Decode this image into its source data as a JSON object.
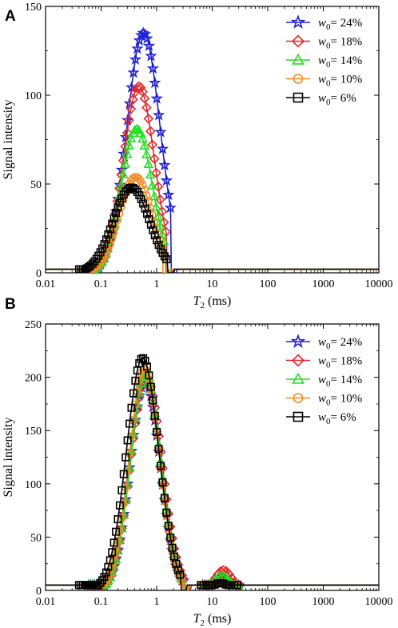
{
  "chart_data": [
    {
      "panel": "A",
      "type": "line",
      "xlabel_main": "T",
      "xlabel_sub": "2",
      "xlabel_unit": " (ms)",
      "ylabel": "Signal intensity",
      "xscale": "log",
      "xlim": [
        0.01,
        10000
      ],
      "ylim": [
        0,
        150
      ],
      "xticks": [
        "0.01",
        "0.1",
        "1",
        "10",
        "100",
        "1000",
        "10000"
      ],
      "yticks": [
        "0",
        "50",
        "100",
        "150"
      ],
      "grid": false,
      "legend_position": "top-right",
      "series": [
        {
          "legend_w": "w",
          "legend_sub": "0",
          "legend_val": "= 24%",
          "color": "#1f1fd6",
          "marker": "star",
          "peak": 135,
          "center": 0.58,
          "sigma": 0.3,
          "x_lo": 0.06,
          "x_hi": 1.8
        },
        {
          "legend_w": "w",
          "legend_sub": "0",
          "legend_val": "= 18%",
          "color": "#e8272a",
          "marker": "diamond",
          "peak": 105,
          "center": 0.48,
          "sigma": 0.28,
          "x_lo": 0.05,
          "x_hi": 1.5
        },
        {
          "legend_w": "w",
          "legend_sub": "0",
          "legend_val": "= 14%",
          "color": "#22e022",
          "marker": "triangle",
          "peak": 81,
          "center": 0.44,
          "sigma": 0.28,
          "x_lo": 0.05,
          "x_hi": 1.4
        },
        {
          "legend_w": "w",
          "legend_sub": "0",
          "legend_val": "= 10%",
          "color": "#f58a1f",
          "marker": "circle",
          "peak": 54,
          "center": 0.42,
          "sigma": 0.3,
          "x_lo": 0.05,
          "x_hi": 1.3
        },
        {
          "legend_w": "w",
          "legend_sub": "0",
          "legend_val": "= 6%",
          "color": "#000000",
          "marker": "square",
          "peak": 48,
          "center": 0.35,
          "sigma": 0.33,
          "x_lo": 0.04,
          "x_hi": 1.6
        }
      ],
      "baseline": 2
    },
    {
      "panel": "B",
      "type": "line",
      "xlabel_main": "T",
      "xlabel_sub": "2",
      "xlabel_unit": " (ms)",
      "ylabel": "Signal intensity",
      "xscale": "log",
      "xlim": [
        0.01,
        10000
      ],
      "ylim": [
        0,
        250
      ],
      "xticks": [
        "0.01",
        "0.1",
        "1",
        "10",
        "100",
        "1000",
        "10000"
      ],
      "yticks": [
        "0",
        "50",
        "100",
        "150",
        "200",
        "250"
      ],
      "grid": false,
      "legend_position": "top-right",
      "series": [
        {
          "legend_w": "w",
          "legend_sub": "0",
          "legend_val": "= 24%",
          "color": "#1f1fd6",
          "marker": "star",
          "peak": 197,
          "center": 0.62,
          "sigma": 0.27,
          "x_lo": 0.06,
          "x_hi": 3.0,
          "peak2": 12,
          "center2": 15,
          "sigma2": 0.14
        },
        {
          "legend_w": "w",
          "legend_sub": "0",
          "legend_val": "= 18%",
          "color": "#e8272a",
          "marker": "diamond",
          "peak": 200,
          "center": 0.65,
          "sigma": 0.28,
          "x_lo": 0.06,
          "x_hi": 3.2,
          "peak2": 19,
          "center2": 16,
          "sigma2": 0.15
        },
        {
          "legend_w": "w",
          "legend_sub": "0",
          "legend_val": "= 14%",
          "color": "#22e022",
          "marker": "triangle",
          "peak": 202,
          "center": 0.63,
          "sigma": 0.27,
          "x_lo": 0.06,
          "x_hi": 3.0,
          "peak2": 14,
          "center2": 15,
          "sigma2": 0.14
        },
        {
          "legend_w": "w",
          "legend_sub": "0",
          "legend_val": "= 10%",
          "color": "#f58a1f",
          "marker": "circle",
          "peak": 208,
          "center": 0.6,
          "sigma": 0.27,
          "x_lo": 0.06,
          "x_hi": 2.9,
          "peak2": 8,
          "center2": 14,
          "sigma2": 0.14
        },
        {
          "legend_w": "w",
          "legend_sub": "0",
          "legend_val": "= 6%",
          "color": "#000000",
          "marker": "square",
          "peak": 218,
          "center": 0.56,
          "sigma": 0.29,
          "x_lo": 0.04,
          "x_hi": 2.7,
          "peak2": 7,
          "center2": 14,
          "sigma2": 0.14
        }
      ],
      "baseline": 5
    }
  ]
}
